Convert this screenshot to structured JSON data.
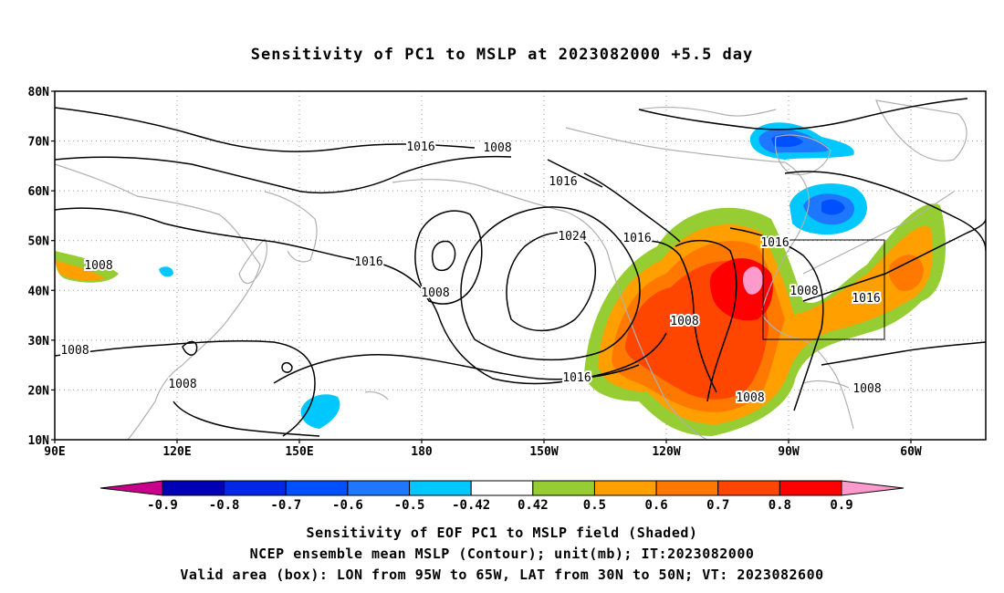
{
  "title": "Sensitivity of PC1 to MSLP at 2023082000 +5.5 day",
  "map": {
    "lat_ticks": [
      "80N",
      "70N",
      "60N",
      "50N",
      "40N",
      "30N",
      "20N",
      "10N"
    ],
    "lon_ticks": [
      "90E",
      "120E",
      "150E",
      "180",
      "150W",
      "120W",
      "90W",
      "60W"
    ],
    "grid": "dotted",
    "valid_box": {
      "lon_range": [
        "95W",
        "65W"
      ],
      "lat_range": [
        "30N",
        "50N"
      ]
    },
    "contour_labels": [
      "1016",
      "1008",
      "1016",
      "1024",
      "1016",
      "1016",
      "1008",
      "1016",
      "1008",
      "1008",
      "1016",
      "1008",
      "1008",
      "1016",
      "1008",
      "1008",
      "1008"
    ],
    "colors": {
      "coast": "#b0b0b0",
      "contour": "#000000",
      "grid": "#888888"
    }
  },
  "colorbar": {
    "labels": [
      "-0.9",
      "-0.8",
      "-0.7",
      "-0.6",
      "-0.5",
      "-0.42",
      "0.42",
      "0.5",
      "0.6",
      "0.7",
      "0.8",
      "0.9"
    ],
    "colors": [
      "#c8008c",
      "#0000b4",
      "#0028e6",
      "#0050ff",
      "#1e78ff",
      "#00c8ff",
      "#ffffff",
      "#96cd32",
      "#ffa000",
      "#ff7800",
      "#ff4600",
      "#ff0000",
      "#ff9acd"
    ]
  },
  "captions": [
    "Sensitivity of EOF PC1 to MSLP field (Shaded)",
    "NCEP ensemble mean MSLP (Contour); unit(mb); IT:2023082000",
    "Valid area (box): LON from 95W to 65W, LAT from 30N to 50N; VT: 2023082600"
  ]
}
